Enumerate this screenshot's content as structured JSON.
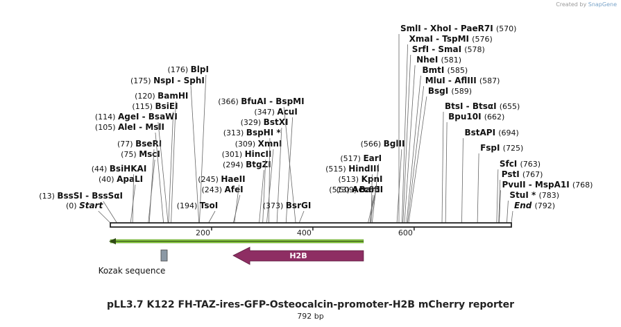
{
  "credit": {
    "prefix": "Created by",
    "brand": "SnapGene"
  },
  "map": {
    "title": "pLL3.7 K122 FH-TAZ-ires-GFP-Osteocalcin-promoter-H2B mCherry reporter",
    "length_text": "792 bp",
    "length_bp": 792,
    "axis_ticks": [
      {
        "bp": 200,
        "label": "200"
      },
      {
        "bp": 400,
        "label": "400"
      },
      {
        "bp": 600,
        "label": "600"
      }
    ],
    "features": [
      {
        "name": "",
        "start": 1,
        "end": 500,
        "direction": "reverse",
        "color": "#86c440",
        "type": "arrow-line"
      },
      {
        "name": "Kozak sequence",
        "start": 99,
        "end": 109,
        "color": "#8c99a5",
        "type": "box"
      },
      {
        "name": "H2B",
        "start": 123,
        "end": 500,
        "direction": "reverse",
        "color": "#8e2e63",
        "type": "arrow"
      }
    ],
    "sites": [
      {
        "text": "Start",
        "pos": "(0)",
        "bp": 0,
        "italic": true,
        "side": "left"
      },
      {
        "text": "BssSI  - BssSαI",
        "pos": "(13)",
        "bp": 13,
        "side": "left"
      },
      {
        "text": "ApaLI",
        "pos": "(40)",
        "bp": 40,
        "side": "left"
      },
      {
        "text": "BsiHKAI",
        "pos": "(44)",
        "bp": 44,
        "side": "left"
      },
      {
        "text": "MscI",
        "pos": "(75)",
        "bp": 75,
        "side": "left"
      },
      {
        "text": "BseRI",
        "pos": "(77)",
        "bp": 77,
        "side": "left"
      },
      {
        "text": "AleI  - MslI",
        "pos": "(105)",
        "bp": 105,
        "side": "left"
      },
      {
        "text": "AgeI  - BsaWI",
        "pos": "(114)",
        "bp": 114,
        "side": "left"
      },
      {
        "text": "BsiEI",
        "pos": "(115)",
        "bp": 115,
        "side": "left"
      },
      {
        "text": "BamHI",
        "pos": "(120)",
        "bp": 120,
        "side": "left"
      },
      {
        "text": "NspI  - SphI",
        "pos": "(175)",
        "bp": 175,
        "side": "left"
      },
      {
        "text": "BlpI",
        "pos": "(176)",
        "bp": 176,
        "side": "left"
      },
      {
        "text": "TsoI",
        "pos": "(194)",
        "bp": 194,
        "side": "left"
      },
      {
        "text": "AfeI",
        "pos": "(243)",
        "bp": 243,
        "side": "left"
      },
      {
        "text": "HaeII",
        "pos": "(245)",
        "bp": 245,
        "side": "left"
      },
      {
        "text": "BtgZI",
        "pos": "(294)",
        "bp": 294,
        "side": "left"
      },
      {
        "text": "HincII",
        "pos": "(301)",
        "bp": 301,
        "side": "left"
      },
      {
        "text": "XmnI",
        "pos": "(309)",
        "bp": 309,
        "side": "left"
      },
      {
        "text": "BspHI *",
        "pos": "(313)",
        "bp": 313,
        "side": "left"
      },
      {
        "text": "BstXI",
        "pos": "(329)",
        "bp": 329,
        "side": "left"
      },
      {
        "text": "AcuI",
        "pos": "(347)",
        "bp": 347,
        "side": "left"
      },
      {
        "text": "BfuAI  - BspMI",
        "pos": "(366)",
        "bp": 366,
        "side": "left"
      },
      {
        "text": "BsrGI",
        "pos": "(373)",
        "bp": 373,
        "side": "left"
      },
      {
        "text": "BanI",
        "pos": "(509)",
        "bp": 509,
        "side": "left"
      },
      {
        "text": "Acc65I",
        "pos": "(513)",
        "bp": 513,
        "side": "left"
      },
      {
        "text": "KpnI",
        "pos": "(513)",
        "bp": 513,
        "side": "left"
      },
      {
        "text": "HindIII",
        "pos": "(515)",
        "bp": 515,
        "side": "left"
      },
      {
        "text": "EarI",
        "pos": "(517)",
        "bp": 517,
        "side": "left"
      },
      {
        "text": "BglII",
        "pos": "(566)",
        "bp": 566,
        "side": "left"
      },
      {
        "text": "SmlI  - XhoI  - PaeR7I",
        "pos": "(570)",
        "bp": 570,
        "side": "right"
      },
      {
        "text": "XmaI  - TspMI",
        "pos": "(576)",
        "bp": 576,
        "side": "right"
      },
      {
        "text": "SrfI  - SmaI",
        "pos": "(578)",
        "bp": 578,
        "side": "right"
      },
      {
        "text": "NheI",
        "pos": "(581)",
        "bp": 581,
        "side": "right"
      },
      {
        "text": "BmtI",
        "pos": "(585)",
        "bp": 585,
        "side": "right"
      },
      {
        "text": "MluI  - AflIII",
        "pos": "(587)",
        "bp": 587,
        "side": "right"
      },
      {
        "text": "BsgI",
        "pos": "(589)",
        "bp": 589,
        "side": "right"
      },
      {
        "text": "BtsI  - BtsαI",
        "pos": "(655)",
        "bp": 655,
        "side": "right"
      },
      {
        "text": "Bpu10I",
        "pos": "(662)",
        "bp": 662,
        "side": "right"
      },
      {
        "text": "BstAPI",
        "pos": "(694)",
        "bp": 694,
        "side": "right"
      },
      {
        "text": "FspI",
        "pos": "(725)",
        "bp": 725,
        "side": "right"
      },
      {
        "text": "SfcI",
        "pos": "(763)",
        "bp": 763,
        "side": "right"
      },
      {
        "text": "PstI",
        "pos": "(767)",
        "bp": 767,
        "side": "right"
      },
      {
        "text": "PvuII  - MspA1I",
        "pos": "(768)",
        "bp": 768,
        "side": "right"
      },
      {
        "text": "StuI *",
        "pos": "(783)",
        "bp": 783,
        "side": "right"
      },
      {
        "text": "End",
        "pos": "(792)",
        "bp": 792,
        "italic": true,
        "side": "right"
      }
    ]
  }
}
